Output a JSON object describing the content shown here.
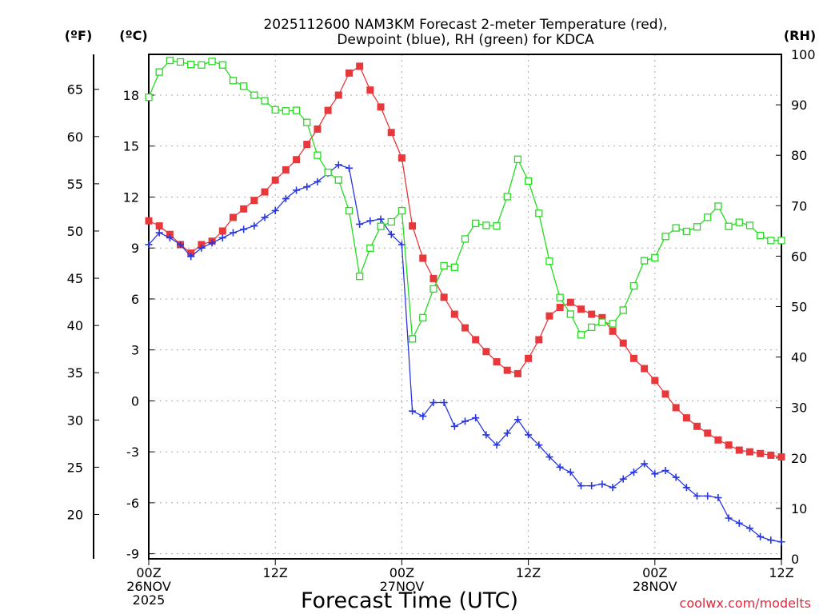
{
  "chart_data": {
    "type": "line",
    "title_line1": "2025112600 NAM3KM Forecast 2-meter Temperature (red),",
    "title_line2": "Dewpoint (blue), RH (green) for KDCA",
    "xlabel": "Forecast Time (UTC)",
    "credit": "coolwx.com/modelts",
    "left_unit_f": "(ºF)",
    "left_unit_c": "(ºC)",
    "right_unit": "(RH)",
    "x_axis": {
      "range_hours": [
        0,
        60
      ],
      "ticks": [
        {
          "hour": 0,
          "lines": [
            "00Z",
            "26NOV",
            "2025"
          ]
        },
        {
          "hour": 12,
          "lines": [
            "12Z"
          ]
        },
        {
          "hour": 24,
          "lines": [
            "00Z",
            "27NOV"
          ]
        },
        {
          "hour": 36,
          "lines": [
            "12Z"
          ]
        },
        {
          "hour": 48,
          "lines": [
            "00Z",
            "28NOV"
          ]
        },
        {
          "hour": 60,
          "lines": [
            "12Z"
          ]
        }
      ]
    },
    "y_celsius": {
      "range": [
        -9.3,
        20.4
      ],
      "ticks": [
        18,
        15,
        12,
        9,
        6,
        3,
        0,
        -3,
        -6,
        -9
      ]
    },
    "y_fahrenheit": {
      "range": [
        15.3,
        68.7
      ],
      "ticks": [
        65,
        60,
        55,
        50,
        45,
        40,
        35,
        30,
        25,
        20
      ]
    },
    "y_rh": {
      "range": [
        0,
        100
      ],
      "ticks": [
        100,
        90,
        80,
        70,
        60,
        50,
        40,
        30,
        20,
        10,
        0
      ]
    },
    "series": [
      {
        "name": "2-meter Temperature",
        "unit": "C",
        "color": "#e8383c",
        "marker": "filled-square",
        "values": [
          10.6,
          10.3,
          9.8,
          9.2,
          8.7,
          9.2,
          9.4,
          10.0,
          10.8,
          11.3,
          11.8,
          12.3,
          13.0,
          13.6,
          14.2,
          15.1,
          16.0,
          17.1,
          18.0,
          19.3,
          19.7,
          18.3,
          17.3,
          15.8,
          14.3,
          10.3,
          8.4,
          7.2,
          6.1,
          5.1,
          4.3,
          3.6,
          2.9,
          2.3,
          1.8,
          1.6,
          2.5,
          3.6,
          5.0,
          5.5,
          5.8,
          5.4,
          5.1,
          4.9,
          4.1,
          3.4,
          2.5,
          1.9,
          1.2,
          0.4,
          -0.4,
          -1.0,
          -1.5,
          -1.9,
          -2.3,
          -2.6,
          -2.9,
          -3.0,
          -3.1,
          -3.2,
          -3.3
        ]
      },
      {
        "name": "Dewpoint",
        "unit": "C",
        "color": "#2837e0",
        "marker": "plus",
        "values": [
          9.2,
          9.9,
          9.6,
          9.2,
          8.5,
          9.0,
          9.3,
          9.6,
          9.9,
          10.1,
          10.3,
          10.8,
          11.2,
          11.9,
          12.4,
          12.6,
          12.9,
          13.4,
          13.9,
          13.7,
          10.4,
          10.6,
          10.7,
          9.8,
          9.2,
          -0.6,
          -0.9,
          -0.1,
          -0.1,
          -1.5,
          -1.2,
          -1.0,
          -2.0,
          -2.6,
          -1.9,
          -1.1,
          -2.0,
          -2.6,
          -3.3,
          -3.9,
          -4.2,
          -5.0,
          -5.0,
          -4.9,
          -5.1,
          -4.6,
          -4.2,
          -3.7,
          -4.3,
          -4.1,
          -4.5,
          -5.1,
          -5.6,
          -5.6,
          -5.7,
          -6.9,
          -7.2,
          -7.5,
          -8.0,
          -8.2,
          -8.3
        ]
      },
      {
        "name": "RH",
        "unit": "%",
        "color": "#25dc21",
        "marker": "open-square",
        "values": [
          91.5,
          96.5,
          98.8,
          98.5,
          98.0,
          97.9,
          98.6,
          97.9,
          94.8,
          93.7,
          91.9,
          90.8,
          89.0,
          88.8,
          88.9,
          86.5,
          80.0,
          76.6,
          75.1,
          69.0,
          56.0,
          61.6,
          65.9,
          66.8,
          69.0,
          43.6,
          47.8,
          53.5,
          58.1,
          57.8,
          63.4,
          66.5,
          66.1,
          66.0,
          71.8,
          79.2,
          74.9,
          68.5,
          59.0,
          51.8,
          48.5,
          44.4,
          45.9,
          46.9,
          46.6,
          49.3,
          54.1,
          59.1,
          59.7,
          63.9,
          65.6,
          64.9,
          65.8,
          67.7,
          69.9,
          65.9,
          66.7,
          66.1,
          64.1,
          63.1,
          63.1
        ]
      }
    ]
  }
}
